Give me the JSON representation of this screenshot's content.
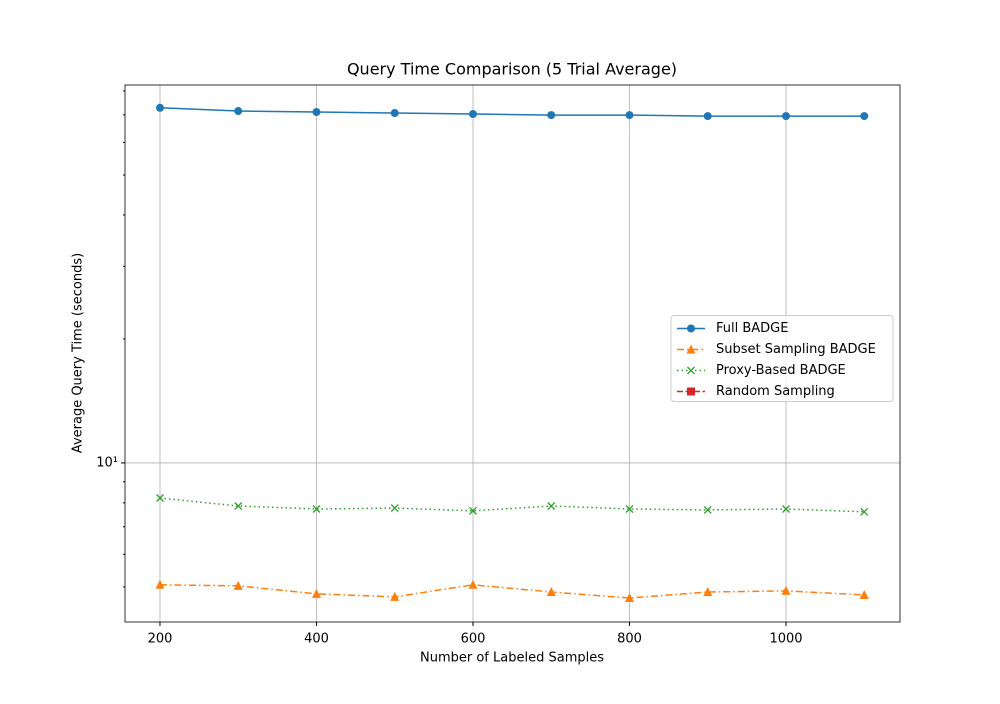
{
  "chart_data": {
    "type": "line",
    "title": "Query Time Comparison (5 Trial Average)",
    "x_label": "Number of Labeled Samples",
    "y_label": "Average Query Time (seconds)",
    "x": [
      200,
      300,
      400,
      500,
      600,
      700,
      800,
      900,
      1000,
      1100
    ],
    "series": [
      {
        "name": "Full BADGE",
        "color": "#1f77b4",
        "linestyle": "solid",
        "marker": "circle",
        "values": [
          72.8,
          71.5,
          71.1,
          70.7,
          70.3,
          69.9,
          69.9,
          69.5,
          69.5,
          69.5
        ]
      },
      {
        "name": "Subset Sampling BADGE",
        "color": "#ff7f0e",
        "linestyle": "dashdot",
        "marker": "triangle",
        "values": [
          5.06,
          5.03,
          4.81,
          4.73,
          5.06,
          4.86,
          4.7,
          4.86,
          4.89,
          4.78
        ]
      },
      {
        "name": "Proxy-Based BADGE",
        "color": "#2ca02c",
        "linestyle": "dotted",
        "marker": "x",
        "values": [
          8.22,
          7.86,
          7.73,
          7.77,
          7.65,
          7.86,
          7.73,
          7.69,
          7.73,
          7.61
        ]
      },
      {
        "name": "Random Sampling",
        "color": "#d62728",
        "linestyle": "dashed",
        "marker": "square",
        "values": [
          null,
          null,
          null,
          null,
          null,
          null,
          null,
          null,
          null,
          null
        ]
      }
    ],
    "xlim": [
      155.3,
      1145.7
    ],
    "xticks": [
      200,
      400,
      600,
      800,
      1000
    ],
    "ylim": [
      4.11,
      82.7
    ],
    "yticks": [
      {
        "value": 10,
        "label": "10¹"
      }
    ],
    "log_y": true,
    "grid": true,
    "legend": "center right"
  }
}
